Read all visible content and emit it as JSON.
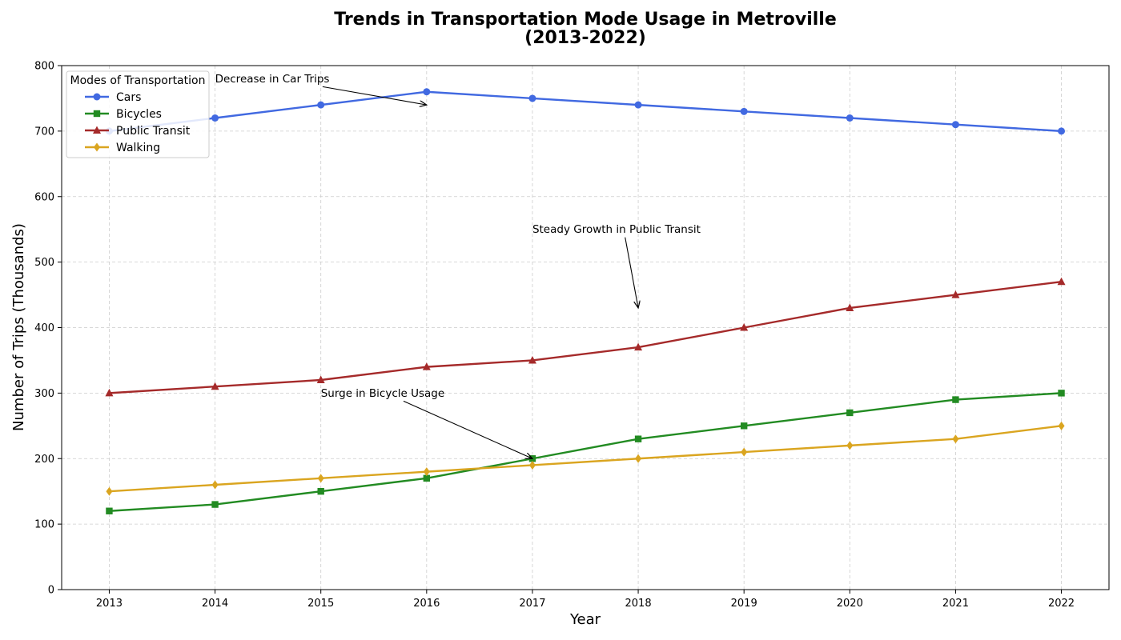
{
  "chart_data": {
    "type": "line",
    "title_lines": [
      "Trends in Transportation Mode Usage in Metroville",
      "(2013-2022)"
    ],
    "xlabel": "Year",
    "ylabel": "Number of Trips (Thousands)",
    "x": [
      2013,
      2014,
      2015,
      2016,
      2017,
      2018,
      2019,
      2020,
      2021,
      2022
    ],
    "xlim": [
      2012.55,
      2022.45
    ],
    "ylim": [
      0,
      800
    ],
    "yticks": [
      0,
      100,
      200,
      300,
      400,
      500,
      600,
      700,
      800
    ],
    "grid": true,
    "legend": {
      "title": "Modes of Transportation",
      "placement": "top-left"
    },
    "series": [
      {
        "name": "Cars",
        "color": "#4169e1",
        "marker": "circle",
        "values": [
          700,
          720,
          740,
          760,
          750,
          740,
          730,
          720,
          710,
          700
        ]
      },
      {
        "name": "Bicycles",
        "color": "#228b22",
        "marker": "square",
        "values": [
          120,
          130,
          150,
          170,
          200,
          230,
          250,
          270,
          290,
          300
        ]
      },
      {
        "name": "Public Transit",
        "color": "#a52a2a",
        "marker": "triangle",
        "values": [
          300,
          310,
          320,
          340,
          350,
          370,
          400,
          430,
          450,
          470
        ]
      },
      {
        "name": "Walking",
        "color": "#daa520",
        "marker": "diamond",
        "values": [
          150,
          160,
          170,
          180,
          190,
          200,
          210,
          220,
          230,
          250
        ]
      }
    ],
    "annotations": [
      {
        "text": "Decrease in Car Trips",
        "text_at": [
          2014,
          780
        ],
        "arrow_to": [
          2016,
          740
        ]
      },
      {
        "text": "Steady Growth in Public Transit",
        "text_at": [
          2017,
          550
        ],
        "arrow_to": [
          2018,
          430
        ]
      },
      {
        "text": "Surge in Bicycle Usage",
        "text_at": [
          2015,
          300
        ],
        "arrow_to": [
          2017,
          200
        ]
      }
    ]
  }
}
